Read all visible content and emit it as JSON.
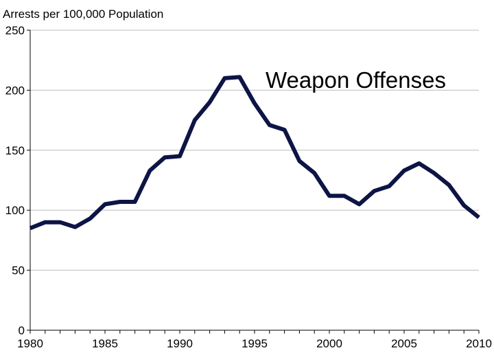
{
  "chart_data": {
    "type": "line",
    "title": "",
    "xlabel": "",
    "ylabel": "Arrests per 100,000 Population",
    "annotation": "Weapon Offenses",
    "xlim": [
      1980,
      2010
    ],
    "ylim": [
      0,
      250
    ],
    "x_ticks": [
      1980,
      1985,
      1990,
      1995,
      2000,
      2005,
      2010
    ],
    "y_ticks": [
      0,
      50,
      100,
      150,
      200,
      250
    ],
    "grid": "horizontal",
    "series": [
      {
        "name": "Weapon Offenses",
        "color": "#0d1545",
        "x": [
          1980,
          1981,
          1982,
          1983,
          1984,
          1985,
          1986,
          1987,
          1988,
          1989,
          1990,
          1991,
          1992,
          1993,
          1994,
          1995,
          1996,
          1997,
          1998,
          1999,
          2000,
          2001,
          2002,
          2003,
          2004,
          2005,
          2006,
          2007,
          2008,
          2009,
          2010
        ],
        "values": [
          85,
          90,
          90,
          86,
          93,
          105,
          107,
          107,
          133,
          144,
          145,
          175,
          190,
          210,
          211,
          189,
          171,
          167,
          141,
          131,
          112,
          112,
          105,
          116,
          120,
          133,
          139,
          131,
          121,
          104,
          94
        ]
      }
    ]
  }
}
